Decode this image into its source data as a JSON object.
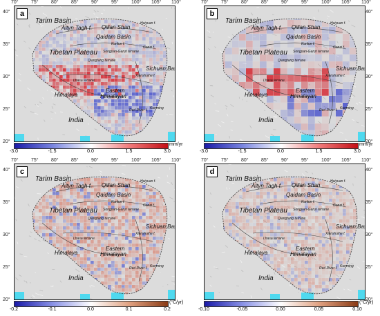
{
  "lon_ticks": [
    "70°",
    "75°",
    "80°",
    "85°",
    "90°",
    "95°",
    "100°",
    "105°",
    "110°"
  ],
  "lat_ticks": [
    "40°",
    "35°",
    "30°",
    "25°",
    "20°"
  ],
  "colors": {
    "land": "#dcdcdc",
    "sea": "#4fd9ef",
    "red": "#d4202a",
    "blue": "#2a35c8",
    "brown": "#a04a2a"
  },
  "place_labels": {
    "tarim": "Tarim Basin",
    "altyn": "Altyn Tagh f.",
    "qilian": "Qilian Shan",
    "qaidam": "Qaidam Basin",
    "haiyuan": "Haiyuan f.",
    "kunlun": "Kunlun f.",
    "ganzi": "Ganzi f.",
    "plateau": "Tibetan Plateau",
    "songpan": "Songpan-Ganzi terrane",
    "qiangtang": "Qiangtang terrane",
    "lhasa": "Lhasa terrane",
    "sichuan": "Sichuan Basin",
    "xianshui": "Xianshuihe f.",
    "eastern": "Eastern",
    "himalayan": "Himalayan",
    "himalaya": "Himalaya",
    "india": "India",
    "kunming": "Kunming",
    "redriver": "Red River f."
  },
  "panels": [
    {
      "tag": "a",
      "unit": "mm/yr",
      "ticks": [
        "-3.0",
        "-1.5",
        "0.0",
        "1.5",
        "3.0"
      ],
      "palette": "rb"
    },
    {
      "tag": "b",
      "unit": "mm/yr",
      "ticks": [
        "-3.0",
        "-1.5",
        "0.0",
        "1.5",
        "3.0"
      ],
      "palette": "rb"
    },
    {
      "tag": "c",
      "unit": "(°C/yr)",
      "ticks": [
        "-0.2",
        "-0.1",
        "0.0",
        "0.1",
        "0.2"
      ],
      "palette": "bb"
    },
    {
      "tag": "d",
      "unit": "(°C/yr)",
      "ticks": [
        "-0.10",
        "-0.05",
        "0.00",
        "0.05",
        "0.10"
      ],
      "palette": "bb"
    }
  ]
}
